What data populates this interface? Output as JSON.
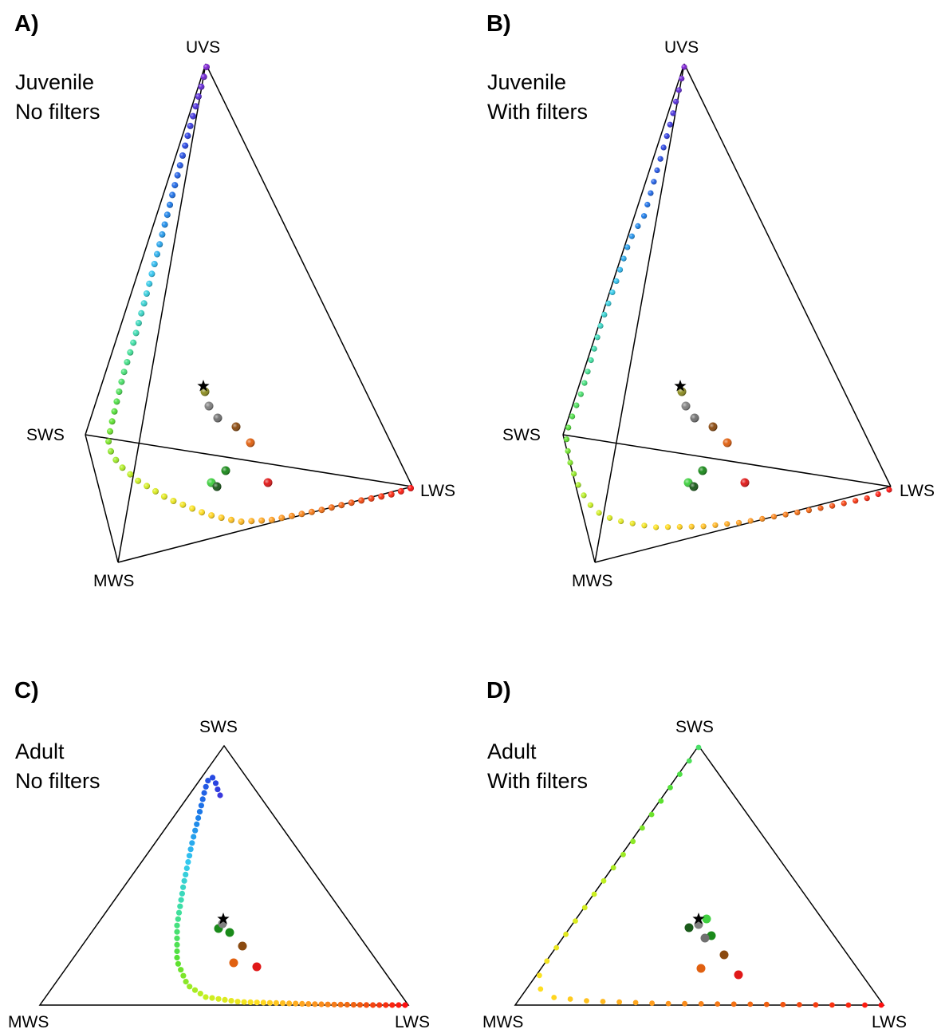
{
  "panels": [
    {
      "letter": "A)",
      "stage": "Juvenile",
      "filter": "No filters",
      "vertices": {
        "top": "UVS",
        "left": "SWS",
        "right": "LWS",
        "bottom": "MWS"
      }
    },
    {
      "letter": "B)",
      "stage": "Juvenile",
      "filter": "With filters",
      "vertices": {
        "top": "UVS",
        "left": "SWS",
        "right": "LWS",
        "bottom": "MWS"
      }
    },
    {
      "letter": "C)",
      "stage": "Adult",
      "filter": "No filters",
      "vertices": {
        "top": "SWS",
        "left": "MWS",
        "right": "LWS"
      }
    },
    {
      "letter": "D)",
      "stage": "Adult",
      "filter": "With filters",
      "vertices": {
        "top": "SWS",
        "left": "MWS",
        "right": "LWS"
      }
    }
  ],
  "colors": {
    "spectrum": [
      "#7a1fd0",
      "#2a3fe0",
      "#1a7ae8",
      "#33c8f0",
      "#3ee0a0",
      "#55e030",
      "#c8f020",
      "#ffe020",
      "#ffa020",
      "#f06010",
      "#ff1010"
    ],
    "sample_points": [
      "#8c8c20",
      "#808080",
      "#707070",
      "#8a4a10",
      "#e06010",
      "#1a8a1a",
      "#40d040",
      "#1a5a1a",
      "#e01818"
    ]
  }
}
